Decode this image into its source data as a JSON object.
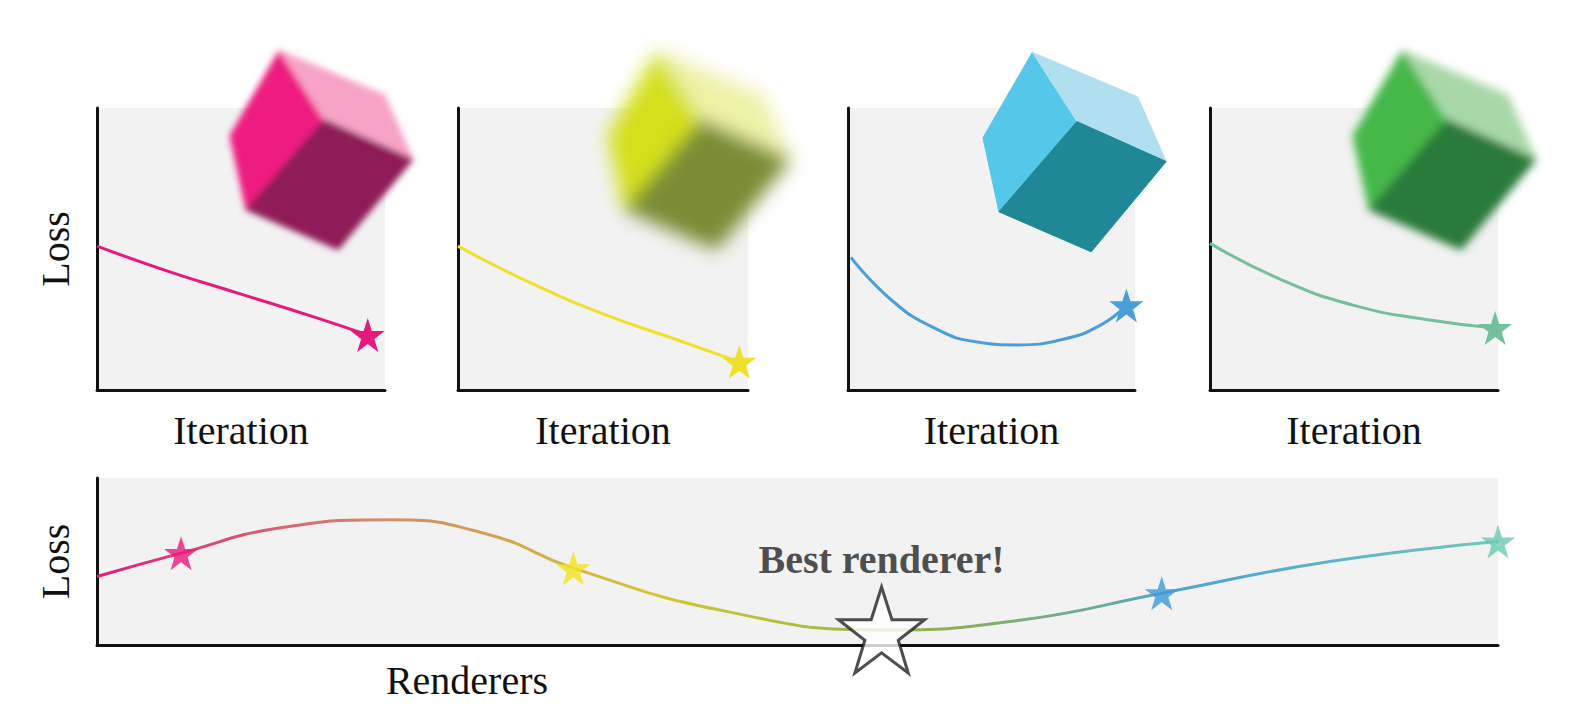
{
  "chart_data": [
    {
      "type": "line",
      "x_label": "Iteration",
      "y_label": "Loss",
      "xlim": [
        0,
        100
      ],
      "ylim": [
        0,
        100
      ],
      "tick_labels": false,
      "grid": false,
      "series": [
        {
          "color": "#e8197d",
          "marker": "star",
          "x": [
            0,
            25,
            50,
            75,
            94
          ],
          "values": [
            51,
            42,
            34,
            26,
            19.5
          ]
        }
      ]
    },
    {
      "type": "line",
      "x_label": "Iteration",
      "xlim": [
        0,
        100
      ],
      "ylim": [
        0,
        100
      ],
      "tick_labels": false,
      "grid": false,
      "series": [
        {
          "color": "#efe02a",
          "marker": "star",
          "x": [
            0,
            25,
            50,
            75,
            97
          ],
          "values": [
            51,
            38,
            27,
            18,
            10
          ]
        }
      ]
    },
    {
      "type": "line",
      "x_label": "Iteration",
      "xlim": [
        0,
        100
      ],
      "ylim": [
        0,
        100
      ],
      "tick_labels": false,
      "grid": false,
      "series": [
        {
          "color": "#4a9fd8",
          "marker": "star",
          "x": [
            1,
            15,
            30,
            45,
            59,
            75,
            88,
            97
          ],
          "values": [
            47,
            32,
            22,
            17,
            16,
            18,
            23,
            30
          ]
        }
      ]
    },
    {
      "type": "line",
      "x_label": "Iteration",
      "xlim": [
        0,
        100
      ],
      "ylim": [
        0,
        100
      ],
      "tick_labels": false,
      "grid": false,
      "series": [
        {
          "color": "#74bf9c",
          "marker": "star",
          "x": [
            0,
            25,
            50,
            75,
            99
          ],
          "values": [
            52,
            39,
            30,
            25,
            22
          ]
        }
      ]
    },
    {
      "type": "line",
      "x_label": "Renderers",
      "y_label": "Loss",
      "annotation": "Best renderer!",
      "xlim": [
        0,
        100
      ],
      "ylim": [
        0,
        100
      ],
      "tick_labels": false,
      "grid": false,
      "series": [
        {
          "type": "line",
          "colors": [
            "#e8197d",
            "#d08a6a",
            "#d4c830",
            "#8fb050",
            "#4ea6d8",
            "#6ccab8"
          ],
          "x": [
            0,
            6,
            13,
            21,
            28,
            34,
            45,
            56,
            66,
            76,
            88,
            100
          ],
          "values": [
            41,
            55,
            70,
            75,
            66,
            46,
            20,
            9,
            15,
            31,
            50,
            62
          ]
        },
        {
          "type": "scatter",
          "marker": "star",
          "x": [
            6,
            34,
            56,
            76,
            100
          ],
          "values": [
            55,
            46,
            9,
            31,
            62
          ],
          "colors": [
            "#e8197d",
            "#f2e41c",
            "#ffffff",
            "#3d9ad6",
            "#6cc8b4"
          ]
        }
      ]
    }
  ]
}
